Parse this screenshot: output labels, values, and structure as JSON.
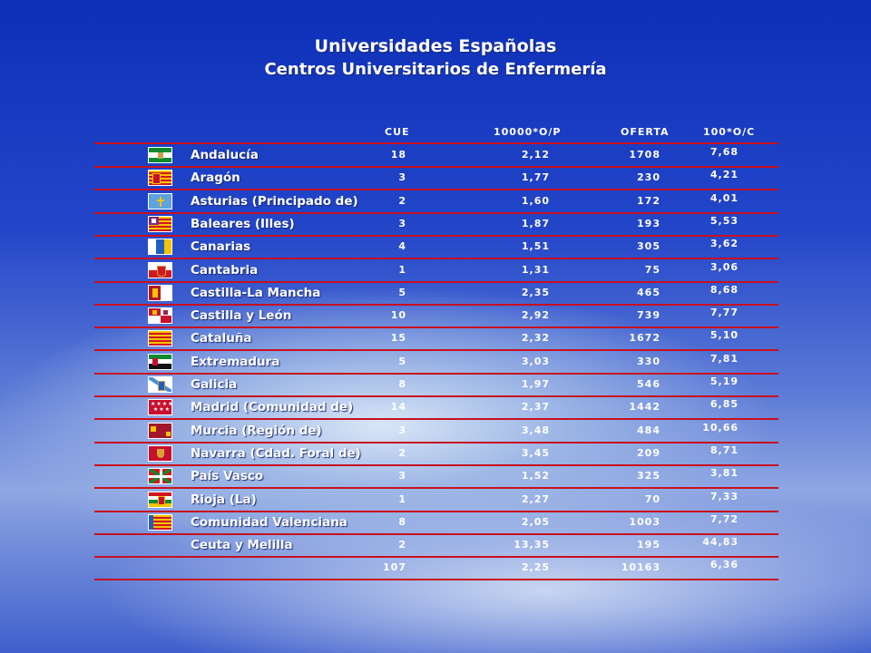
{
  "title": "Universidades  Españolas",
  "subtitle": "Centros Universitarios de Enfermería",
  "headers": {
    "cue": "CUE",
    "ratio": "10000*O/P",
    "oferta": "OFERTA",
    "pct": "100*O/C"
  },
  "colors": {
    "divider": "#c8101e",
    "text": "#ffffff"
  },
  "rows": [
    {
      "name": "Andalucía",
      "cue": "18",
      "ratio": "2,12",
      "oferta": "1708",
      "pct": "7,68",
      "flag": "andalucia-flag-icon"
    },
    {
      "name": "Aragón",
      "cue": "3",
      "ratio": "1,77",
      "oferta": "230",
      "pct": "4,21",
      "flag": "aragon-flag-icon"
    },
    {
      "name": "Asturias (Principado de)",
      "cue": "2",
      "ratio": "1,60",
      "oferta": "172",
      "pct": "4,01",
      "flag": "asturias-flag-icon"
    },
    {
      "name": "Baleares (Illes)",
      "cue": "3",
      "ratio": "1,87",
      "oferta": "193",
      "pct": "5,53",
      "flag": "baleares-flag-icon"
    },
    {
      "name": "Canarias",
      "cue": "4",
      "ratio": "1,51",
      "oferta": "305",
      "pct": "3,62",
      "flag": "canarias-flag-icon"
    },
    {
      "name": "Cantabria",
      "cue": "1",
      "ratio": "1,31",
      "oferta": "75",
      "pct": "3,06",
      "flag": "cantabria-flag-icon"
    },
    {
      "name": "Castilla-La Mancha",
      "cue": "5",
      "ratio": "2,35",
      "oferta": "465",
      "pct": "8,68",
      "flag": "castilla-la-mancha-flag-icon"
    },
    {
      "name": "Castilla y León",
      "cue": "10",
      "ratio": "2,92",
      "oferta": "739",
      "pct": "7,77",
      "flag": "castilla-y-leon-flag-icon"
    },
    {
      "name": "Cataluña",
      "cue": "15",
      "ratio": "2,32",
      "oferta": "1672",
      "pct": "5,10",
      "flag": "cataluna-flag-icon"
    },
    {
      "name": "Extremadura",
      "cue": "5",
      "ratio": "3,03",
      "oferta": "330",
      "pct": "7,81",
      "flag": "extremadura-flag-icon"
    },
    {
      "name": "Galicia",
      "cue": "8",
      "ratio": "1,97",
      "oferta": "546",
      "pct": "5,19",
      "flag": "galicia-flag-icon"
    },
    {
      "name": "Madrid (Comunidad de)",
      "cue": "14",
      "ratio": "2,37",
      "oferta": "1442",
      "pct": "6,85",
      "flag": "madrid-flag-icon"
    },
    {
      "name": "Murcia (Región de)",
      "cue": "3",
      "ratio": "3,48",
      "oferta": "484",
      "pct": "10,66",
      "flag": "murcia-flag-icon"
    },
    {
      "name": "Navarra (Cdad. Foral de)",
      "cue": "2",
      "ratio": "3,45",
      "oferta": "209",
      "pct": "8,71",
      "flag": "navarra-flag-icon"
    },
    {
      "name": "País Vasco",
      "cue": "3",
      "ratio": "1,52",
      "oferta": "325",
      "pct": "3,81",
      "flag": "pais-vasco-flag-icon"
    },
    {
      "name": "Rioja (La)",
      "cue": "1",
      "ratio": "2,27",
      "oferta": "70",
      "pct": "7,33",
      "flag": "rioja-flag-icon"
    },
    {
      "name": "Comunidad Valenciana",
      "cue": "8",
      "ratio": "2,05",
      "oferta": "1003",
      "pct": "7,72",
      "flag": "valencia-flag-icon"
    },
    {
      "name": "Ceuta y Melilla",
      "cue": "2",
      "ratio": "13,35",
      "oferta": "195",
      "pct": "44,83",
      "flag": ""
    },
    {
      "name": "",
      "cue": "107",
      "ratio": "2,25",
      "oferta": "10163",
      "pct": "6,36",
      "flag": ""
    }
  ]
}
